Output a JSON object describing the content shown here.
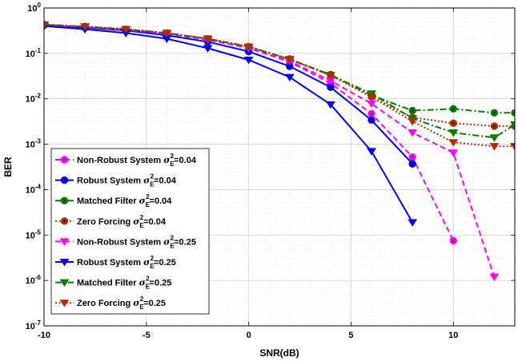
{
  "chart_data": {
    "type": "line",
    "xlabel": "SNR(dB)",
    "ylabel": "BER",
    "xlim": [
      -10,
      13
    ],
    "ylim_log10": [
      -7,
      0
    ],
    "y_scale": "log",
    "grid": "on (major and minor)",
    "legend_position": "lower-left",
    "x_ticks": [
      -10,
      -5,
      0,
      5,
      10
    ],
    "x_tick_labels": [
      "-10",
      "-5",
      "0",
      "5",
      "10"
    ],
    "y_tick_exponents": [
      0,
      -1,
      -2,
      -3,
      -4,
      -5,
      -6,
      -7
    ],
    "y_tick_base": "10",
    "series": [
      {
        "name": "Non-Robust System",
        "legend_suffix": "=0.04",
        "color": "#ff00ff",
        "dash": "dashed",
        "marker": "circle",
        "x": [
          -10,
          -8,
          -6,
          -4,
          -2,
          0,
          2,
          4,
          6,
          8,
          10
        ],
        "y": [
          0.42,
          0.38,
          0.33,
          0.27,
          0.2,
          0.13,
          0.065,
          0.022,
          0.0047,
          0.00052,
          7.5e-06
        ]
      },
      {
        "name": "Robust System",
        "legend_suffix": "=0.04",
        "color": "#0000ff",
        "dash": "solid",
        "marker": "circle",
        "x": [
          -10,
          -8,
          -6,
          -4,
          -2,
          0,
          2,
          4,
          6,
          8
        ],
        "y": [
          0.42,
          0.37,
          0.32,
          0.25,
          0.18,
          0.11,
          0.052,
          0.018,
          0.0034,
          0.00037
        ]
      },
      {
        "name": "Matched Filter",
        "legend_suffix": "=0.04",
        "color": "#007f00",
        "dash": "dashdot",
        "marker": "circle",
        "x": [
          -10,
          -8,
          -6,
          -4,
          -2,
          0,
          2,
          4,
          6,
          8,
          10,
          12,
          13
        ],
        "y": [
          0.43,
          0.39,
          0.34,
          0.28,
          0.21,
          0.14,
          0.075,
          0.034,
          0.012,
          0.0055,
          0.006,
          0.0049,
          0.0049
        ]
      },
      {
        "name": "Zero Forcing",
        "legend_suffix": "=0.04",
        "color": "#b22d00",
        "dash": "dotted",
        "marker": "circle",
        "x": [
          -10,
          -8,
          -6,
          -4,
          -2,
          0,
          2,
          4,
          6,
          8,
          10,
          12,
          13
        ],
        "y": [
          0.43,
          0.39,
          0.34,
          0.28,
          0.21,
          0.14,
          0.075,
          0.033,
          0.011,
          0.0039,
          0.0029,
          0.0025,
          0.0025
        ]
      },
      {
        "name": "Non-Robust System",
        "legend_suffix": "=0.25",
        "color": "#ff00ff",
        "dash": "dashed",
        "marker": "triangle-down",
        "x": [
          -10,
          -8,
          -6,
          -4,
          -2,
          0,
          2,
          4,
          6,
          8,
          10,
          12
        ],
        "y": [
          0.42,
          0.38,
          0.33,
          0.27,
          0.2,
          0.13,
          0.068,
          0.025,
          0.0078,
          0.0018,
          0.00065,
          1.2e-06
        ]
      },
      {
        "name": "Robust System",
        "legend_suffix": "=0.25",
        "color": "#0000ff",
        "dash": "solid",
        "marker": "triangle-down",
        "x": [
          -10,
          -8,
          -6,
          -4,
          -2,
          0,
          2,
          4,
          6,
          8
        ],
        "y": [
          0.4,
          0.34,
          0.28,
          0.21,
          0.13,
          0.072,
          0.03,
          0.0075,
          0.0007,
          1.9e-05
        ]
      },
      {
        "name": "Matched Filter",
        "legend_suffix": "=0.25",
        "color": "#007f00",
        "dash": "dashdot",
        "marker": "triangle-down",
        "x": [
          -10,
          -8,
          -6,
          -4,
          -2,
          0,
          2,
          4,
          6,
          8,
          10,
          12,
          13
        ],
        "y": [
          0.43,
          0.39,
          0.34,
          0.28,
          0.21,
          0.14,
          0.074,
          0.033,
          0.013,
          0.0037,
          0.0018,
          0.0014,
          0.0027
        ]
      },
      {
        "name": "Zero Forcing",
        "legend_suffix": "=0.25",
        "color": "#b22d00",
        "dash": "dotted",
        "marker": "triangle-down",
        "x": [
          -10,
          -8,
          -6,
          -4,
          -2,
          0,
          2,
          4,
          6,
          8,
          10,
          12,
          13
        ],
        "y": [
          0.43,
          0.39,
          0.34,
          0.28,
          0.21,
          0.14,
          0.074,
          0.033,
          0.011,
          0.0032,
          0.0011,
          0.0009,
          0.0009
        ]
      }
    ]
  }
}
